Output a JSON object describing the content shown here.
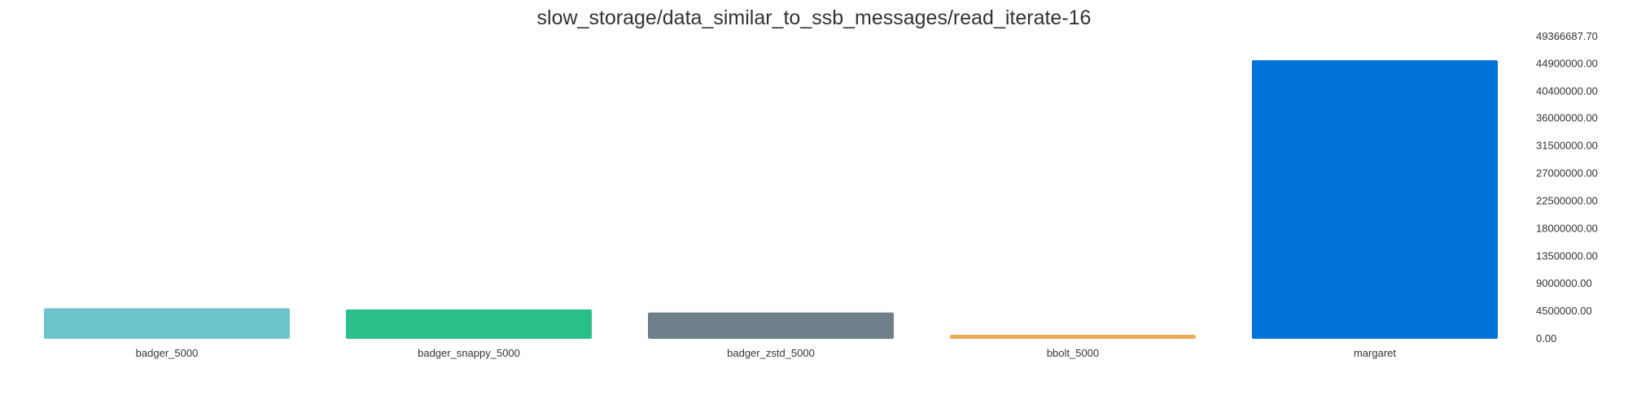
{
  "chart_data": {
    "type": "bar",
    "title": "slow_storage/data_similar_to_ssb_messages/read_iterate-16",
    "xlabel": "",
    "ylabel": "",
    "categories": [
      "badger_5000",
      "badger_snappy_5000",
      "badger_zstd_5000",
      "bbolt_5000",
      "margaret"
    ],
    "values": [
      5000000,
      4800000,
      4300000,
      450000,
      45500000
    ],
    "colors": [
      "#6cc4cc",
      "#2bbf88",
      "#6f7f8a",
      "#e8ad55",
      "#0073d9"
    ],
    "yaxis_position": "right",
    "ylim": [
      0,
      49366687.7
    ],
    "yticks": [
      "0.00",
      "4500000.00",
      "9000000.00",
      "13500000.00",
      "18000000.00",
      "22500000.00",
      "27000000.00",
      "31500000.00",
      "36000000.00",
      "40400000.00",
      "44900000.00",
      "49366687.70"
    ],
    "grid": false,
    "legend": "none"
  }
}
